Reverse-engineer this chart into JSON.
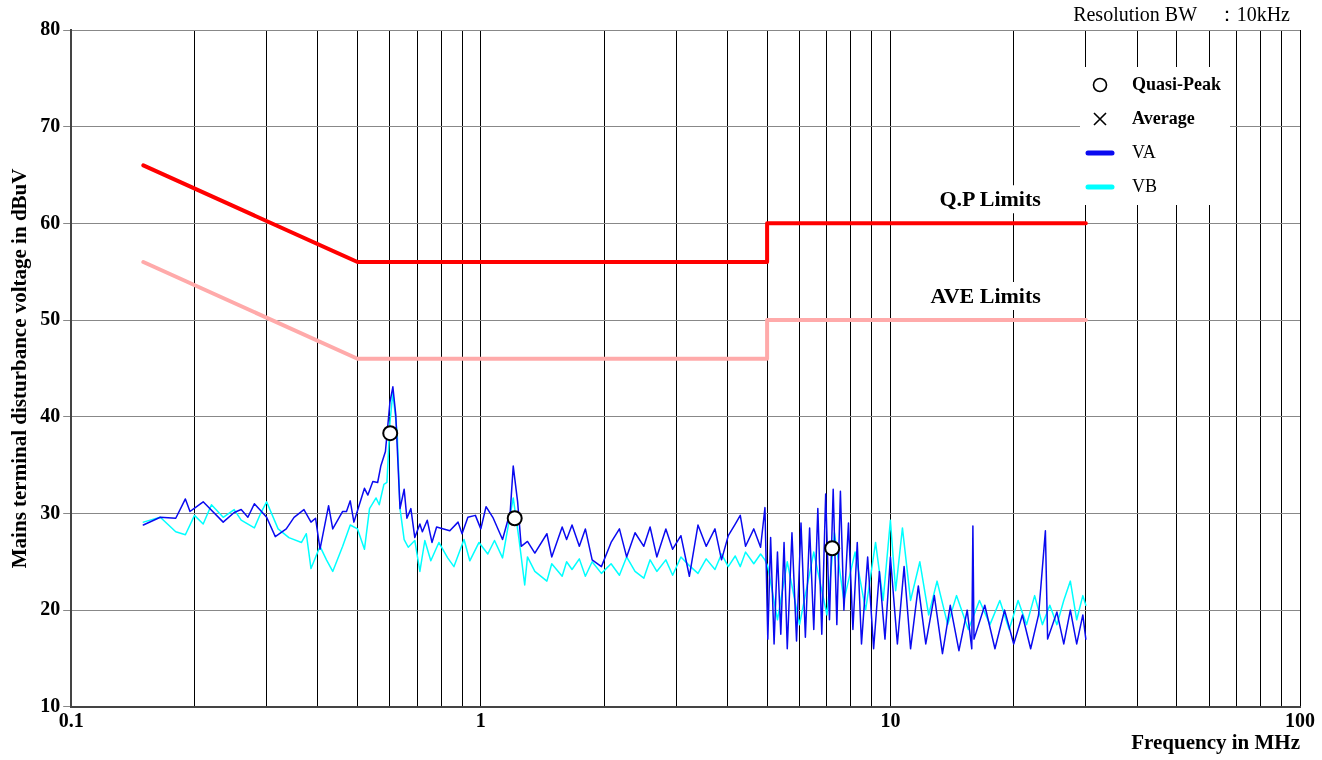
{
  "chart_data": {
    "type": "line",
    "xlabel": "Frequency in MHz",
    "ylabel": "Mains terminal disturbance voltage in dBuV",
    "annotations": [
      "Resolution BW　：10kHz"
    ],
    "log": "x",
    "grid": true,
    "legend": "top right",
    "xlim": [
      0.1,
      100
    ],
    "xticks": [
      0.1,
      {
        "value": 0.2,
        "label": null
      },
      {
        "value": 0.3,
        "label": null
      },
      {
        "value": 0.4,
        "label": null
      },
      {
        "value": 0.5,
        "label": null
      },
      {
        "value": 0.6,
        "label": null
      },
      {
        "value": 0.7,
        "label": null
      },
      {
        "value": 0.8,
        "label": null
      },
      {
        "value": 0.9,
        "label": null
      },
      1,
      {
        "value": 2,
        "label": null
      },
      {
        "value": 3,
        "label": null
      },
      {
        "value": 4,
        "label": null
      },
      {
        "value": 5,
        "label": null
      },
      {
        "value": 6,
        "label": null
      },
      {
        "value": 7,
        "label": null
      },
      {
        "value": 8,
        "label": null
      },
      {
        "value": 9,
        "label": null
      },
      10,
      {
        "value": 20,
        "label": null
      },
      {
        "value": 30,
        "label": null
      },
      {
        "value": 40,
        "label": null
      },
      {
        "value": 50,
        "label": null
      },
      {
        "value": 60,
        "label": null
      },
      {
        "value": 70,
        "label": null
      },
      {
        "value": 80,
        "label": null
      },
      {
        "value": 90,
        "label": null
      },
      100
    ],
    "ylim": [
      10,
      80
    ],
    "yticks": [
      10,
      20,
      30,
      40,
      50,
      60,
      70,
      80
    ],
    "series": [
      {
        "name": "VB",
        "color": "#00ffff",
        "x": [
          0.15,
          0.165,
          0.18,
          0.19,
          0.2,
          0.21,
          0.22,
          0.235,
          0.25,
          0.26,
          0.28,
          0.29,
          0.3,
          0.32,
          0.34,
          0.365,
          0.375,
          0.385,
          0.405,
          0.42,
          0.435,
          0.46,
          0.48,
          0.5,
          0.52,
          0.535,
          0.555,
          0.565,
          0.58,
          0.59,
          0.6,
          0.61,
          0.625,
          0.635,
          0.65,
          0.665,
          0.69,
          0.71,
          0.73,
          0.755,
          0.79,
          0.83,
          0.86,
          0.91,
          0.94,
          0.99,
          1.04,
          1.08,
          1.13,
          1.2,
          1.24,
          1.28,
          1.3,
          1.355,
          1.45,
          1.49,
          1.58,
          1.62,
          1.67,
          1.74,
          1.8,
          1.87,
          1.97,
          2.08,
          2.18,
          2.27,
          2.38,
          2.5,
          2.59,
          2.69,
          2.83,
          2.94,
          3.08,
          3.23,
          3.39,
          3.55,
          3.73,
          3.87,
          4.02,
          4.18,
          4.3,
          4.43,
          4.64,
          4.82,
          4.94,
          5.02,
          5.3,
          5.6,
          6.0,
          6.5,
          7.0,
          7.3,
          7.7,
          8.2,
          8.7,
          9.2,
          9.6,
          10.0,
          10.3,
          10.7,
          11.2,
          11.8,
          12.4,
          13.0,
          13.8,
          14.5,
          15.5,
          16.5,
          17.5,
          18.5,
          19.5,
          20.5,
          21.5,
          22.5,
          23.5,
          24.5,
          25.5,
          26.5,
          27.5,
          28.5,
          29.5,
          30.0
        ],
        "values": [
          29.1,
          29.6,
          28.1,
          27.8,
          29.8,
          28.9,
          30.9,
          29.6,
          30.4,
          29.3,
          28.5,
          30.0,
          31.2,
          28.4,
          27.5,
          27.0,
          27.9,
          24.3,
          26.6,
          25.2,
          24.0,
          26.6,
          28.8,
          28.4,
          26.3,
          30.5,
          31.6,
          30.9,
          33.0,
          33.2,
          39.4,
          42.5,
          38.3,
          30.5,
          27.3,
          26.5,
          27.2,
          24.0,
          27.2,
          25.1,
          27.0,
          25.4,
          24.5,
          27.3,
          25.1,
          27.0,
          25.8,
          27.2,
          25.4,
          31.6,
          27.3,
          22.6,
          25.5,
          24.0,
          23.0,
          24.8,
          23.5,
          25.0,
          24.2,
          25.3,
          23.5,
          25.0,
          23.8,
          24.8,
          23.6,
          25.5,
          24.0,
          23.3,
          25.2,
          24.0,
          25.2,
          23.6,
          25.5,
          24.6,
          23.8,
          25.3,
          24.2,
          25.8,
          24.5,
          25.6,
          24.5,
          26.0,
          24.8,
          25.8,
          25.2,
          24.5,
          19.0,
          25.0,
          18.5,
          26.0,
          19.5,
          28.0,
          21.0,
          26.0,
          20.0,
          27.0,
          21.0,
          29.3,
          22.0,
          28.5,
          21.0,
          25.0,
          19.5,
          23.0,
          18.5,
          21.5,
          18.0,
          21.0,
          18.5,
          21.0,
          18.0,
          21.0,
          18.5,
          21.5,
          18.5,
          20.5,
          18.5,
          21.0,
          23.0,
          19.0,
          21.5,
          20.5
        ]
      },
      {
        "name": "VA",
        "color": "#0a0af0",
        "x": [
          0.15,
          0.165,
          0.18,
          0.19,
          0.195,
          0.21,
          0.235,
          0.25,
          0.26,
          0.27,
          0.28,
          0.29,
          0.3,
          0.315,
          0.335,
          0.35,
          0.37,
          0.385,
          0.395,
          0.405,
          0.425,
          0.435,
          0.46,
          0.47,
          0.48,
          0.49,
          0.52,
          0.53,
          0.545,
          0.56,
          0.57,
          0.585,
          0.6,
          0.61,
          0.62,
          0.635,
          0.65,
          0.66,
          0.675,
          0.69,
          0.71,
          0.72,
          0.74,
          0.76,
          0.78,
          0.84,
          0.88,
          0.9,
          0.93,
          0.97,
          1.0,
          1.03,
          1.07,
          1.13,
          1.18,
          1.2,
          1.23,
          1.255,
          1.3,
          1.355,
          1.45,
          1.49,
          1.58,
          1.62,
          1.67,
          1.74,
          1.8,
          1.87,
          1.97,
          2.08,
          2.18,
          2.27,
          2.38,
          2.5,
          2.59,
          2.69,
          2.83,
          2.94,
          3.08,
          3.23,
          3.39,
          3.55,
          3.73,
          3.87,
          4.02,
          4.18,
          4.3,
          4.43,
          4.64,
          4.82,
          4.94,
          5.02,
          5.1,
          5.2,
          5.3,
          5.4,
          5.5,
          5.6,
          5.75,
          5.9,
          6.05,
          6.2,
          6.35,
          6.5,
          6.65,
          6.8,
          6.95,
          7.1,
          7.25,
          7.4,
          7.55,
          7.7,
          7.9,
          8.1,
          8.3,
          8.5,
          8.8,
          9.1,
          9.4,
          9.7,
          10.0,
          10.4,
          10.8,
          11.2,
          11.7,
          12.2,
          12.8,
          13.4,
          14.0,
          14.7,
          15.4,
          15.8,
          15.9,
          16.0,
          17.0,
          18.0,
          19.0,
          20.0,
          21.0,
          22.0,
          23.0,
          23.9,
          24.2,
          25.5,
          26.5,
          27.5,
          28.5,
          29.5,
          30.0
        ],
        "values": [
          28.8,
          29.6,
          29.5,
          31.5,
          30.2,
          31.2,
          29.1,
          30.1,
          30.4,
          29.6,
          31.0,
          30.3,
          29.6,
          27.6,
          28.4,
          29.6,
          30.4,
          29.1,
          29.5,
          26.3,
          30.8,
          28.4,
          30.2,
          30.2,
          31.3,
          29.1,
          32.6,
          31.9,
          33.3,
          33.2,
          34.9,
          36.4,
          41.5,
          43.1,
          40.2,
          30.5,
          32.5,
          29.5,
          30.5,
          27.5,
          28.9,
          28.1,
          29.3,
          27.0,
          28.6,
          28.2,
          29.1,
          27.9,
          29.6,
          29.8,
          28.4,
          30.7,
          29.6,
          27.3,
          30.2,
          34.9,
          31.2,
          26.6,
          27.1,
          25.9,
          27.9,
          25.5,
          28.6,
          27.3,
          28.8,
          26.6,
          28.4,
          25.2,
          24.5,
          27.0,
          28.4,
          25.5,
          28.0,
          26.6,
          28.6,
          25.5,
          28.4,
          26.3,
          27.7,
          23.5,
          28.8,
          26.6,
          28.4,
          25.2,
          27.7,
          28.9,
          29.8,
          26.6,
          28.4,
          26.5,
          30.6,
          17.0,
          27.5,
          16.5,
          26.0,
          17.5,
          27.0,
          16.0,
          28.0,
          16.8,
          29.0,
          17.2,
          28.5,
          18.0,
          30.5,
          17.5,
          32.0,
          19.0,
          32.5,
          18.5,
          32.3,
          20.0,
          29.0,
          18.0,
          27.0,
          16.5,
          25.5,
          16.0,
          24.0,
          17.0,
          25.5,
          16.5,
          24.5,
          16.0,
          22.5,
          16.5,
          21.5,
          15.5,
          20.5,
          15.8,
          20.0,
          16.0,
          28.7,
          17.0,
          20.5,
          16.0,
          20.0,
          16.5,
          19.5,
          16.0,
          19.5,
          28.2,
          17.0,
          19.8,
          16.5,
          20.0,
          16.5,
          19.5,
          17.0
        ]
      },
      {
        "name": "AVE Limits",
        "color": "#ffaaaa",
        "x": [
          0.15,
          0.5,
          5,
          5,
          30
        ],
        "values": [
          56,
          46,
          46,
          50,
          50
        ]
      },
      {
        "name": "Q.P Limits",
        "color": "#ff0000",
        "x": [
          0.15,
          0.5,
          5,
          5,
          30
        ],
        "values": [
          66,
          56,
          56,
          60,
          60
        ]
      },
      {
        "name": "Quasi-Peak",
        "type": "scatter",
        "marker": "circle",
        "color": "#000000",
        "x": [
          0.601,
          1.21,
          7.21
        ],
        "values": [
          38.3,
          29.5,
          26.4
        ]
      },
      {
        "name": "Average",
        "type": "scatter",
        "marker": "cross",
        "color": "#000000"
      }
    ]
  }
}
